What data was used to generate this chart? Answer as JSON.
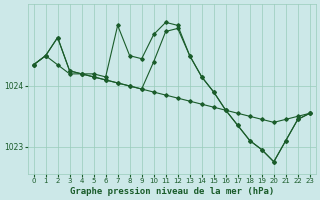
{
  "background_color": "#cce8e8",
  "plot_bg_color": "#cce8e8",
  "grid_color": "#99ccbb",
  "line_color": "#1a5c2a",
  "title": "Graphe pression niveau de la mer (hPa)",
  "title_fontsize": 6.5,
  "xlim": [
    -0.5,
    23.5
  ],
  "ylim": [
    1022.55,
    1025.35
  ],
  "yticks": [
    1023,
    1024
  ],
  "xticks": [
    0,
    1,
    2,
    3,
    4,
    5,
    6,
    7,
    8,
    9,
    10,
    11,
    12,
    13,
    14,
    15,
    16,
    17,
    18,
    19,
    20,
    21,
    22,
    23
  ],
  "line1": {
    "x": [
      0,
      1,
      2,
      3,
      4,
      5,
      6,
      7,
      8,
      9,
      10,
      11,
      12,
      13,
      14,
      15,
      16,
      17,
      18,
      19,
      20,
      21,
      22,
      23
    ],
    "y": [
      1024.35,
      1024.5,
      1024.35,
      1024.2,
      1024.2,
      1024.15,
      1024.1,
      1024.05,
      1024.0,
      1023.95,
      1023.9,
      1023.85,
      1023.8,
      1023.75,
      1023.7,
      1023.65,
      1023.6,
      1023.55,
      1023.5,
      1023.45,
      1023.4,
      1023.45,
      1023.5,
      1023.55
    ]
  },
  "line2": {
    "x": [
      0,
      1,
      2,
      3,
      4,
      5,
      6,
      7,
      8,
      9,
      10,
      11,
      12,
      13,
      14,
      15,
      16,
      17,
      18,
      19,
      20,
      21,
      22,
      23
    ],
    "y": [
      1024.35,
      1024.5,
      1024.8,
      1024.25,
      1024.2,
      1024.2,
      1024.15,
      1025.0,
      1024.5,
      1024.45,
      1024.85,
      1025.05,
      1025.0,
      1024.5,
      1024.15,
      1023.9,
      1023.6,
      1023.35,
      1023.1,
      1022.95,
      1022.75,
      1023.1,
      1023.45,
      1023.55
    ]
  },
  "line3": {
    "x": [
      0,
      1,
      2,
      3,
      4,
      5,
      6,
      7,
      8,
      9,
      10,
      11,
      12,
      13,
      14,
      15,
      16,
      17,
      18,
      19,
      20,
      21,
      22,
      23
    ],
    "y": [
      1024.35,
      1024.5,
      1024.8,
      1024.25,
      1024.2,
      1024.15,
      1024.1,
      1024.05,
      1024.0,
      1023.95,
      1024.4,
      1024.9,
      1024.95,
      1024.5,
      1024.15,
      1023.9,
      1023.6,
      1023.35,
      1023.1,
      1022.95,
      1022.75,
      1023.1,
      1023.45,
      1023.55
    ]
  }
}
